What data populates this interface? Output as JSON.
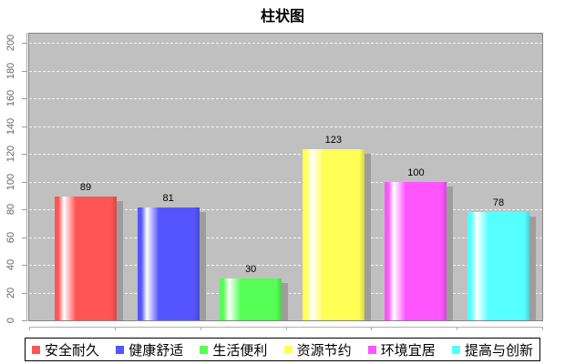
{
  "title": "柱状图",
  "chart_data": {
    "type": "bar",
    "title": "柱状图",
    "categories": [
      "安全耐久",
      "健康舒适",
      "生活便利",
      "资源节约",
      "环境宜居",
      "提高与创新"
    ],
    "values": [
      89,
      81,
      30,
      123,
      100,
      78
    ],
    "series_colors": [
      "#ff5555",
      "#5555ff",
      "#55ff55",
      "#ffff55",
      "#ff55ff",
      "#55ffff"
    ],
    "xlabel": "",
    "ylabel": "",
    "ylim": [
      0,
      208
    ],
    "yticks": [
      0,
      20,
      40,
      60,
      80,
      100,
      120,
      140,
      160,
      180,
      200
    ],
    "grid": "horizontal white dashed lines on gray plot background",
    "legend_position": "bottom",
    "value_labels_shown": true,
    "plot_bg_color": "#c0c0c0",
    "plot_border_color": "#848484",
    "bar_shadow_color": "#9d9d9d",
    "gridline_color": "#f4f4f4",
    "tick_label_color": "#666666",
    "title_color": "#000000"
  }
}
